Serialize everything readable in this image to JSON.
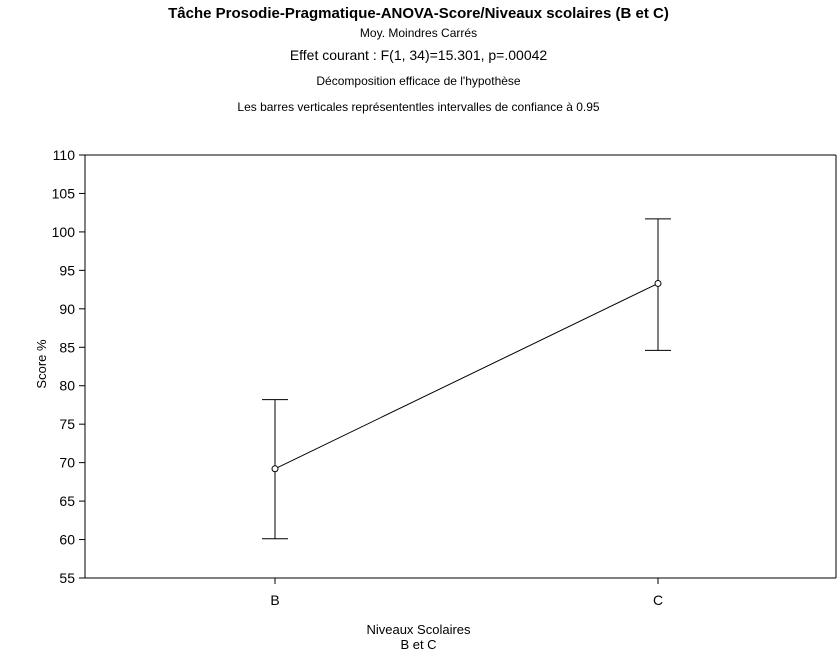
{
  "chart_data": {
    "type": "line",
    "title": "Tâche Prosodie-Pragmatique-ANOVA-Score/Niveaux scolaires (B et C)",
    "subtitle": "Moy. Moindres Carrés",
    "effect": "Effet courant : F(1, 34)=15.301, p=.00042",
    "decomposition": "Décomposition efficace de l'hypothèse",
    "note": "Les barres verticales représententles intervalles de confiance à 0.95",
    "xlabel_line1": "Niveaux Scolaires",
    "xlabel_line2": "B et C",
    "ylabel": "Score %",
    "categories": [
      "B",
      "C"
    ],
    "series": [
      {
        "values": [
          69.2,
          93.3
        ],
        "ci_lower": [
          60.1,
          84.6
        ],
        "ci_upper": [
          78.2,
          101.7
        ]
      }
    ],
    "ylim": [
      55,
      110
    ],
    "yticks": [
      55,
      60,
      65,
      70,
      75,
      80,
      85,
      90,
      95,
      100,
      105,
      110
    ],
    "grid": false,
    "legend": "none"
  }
}
